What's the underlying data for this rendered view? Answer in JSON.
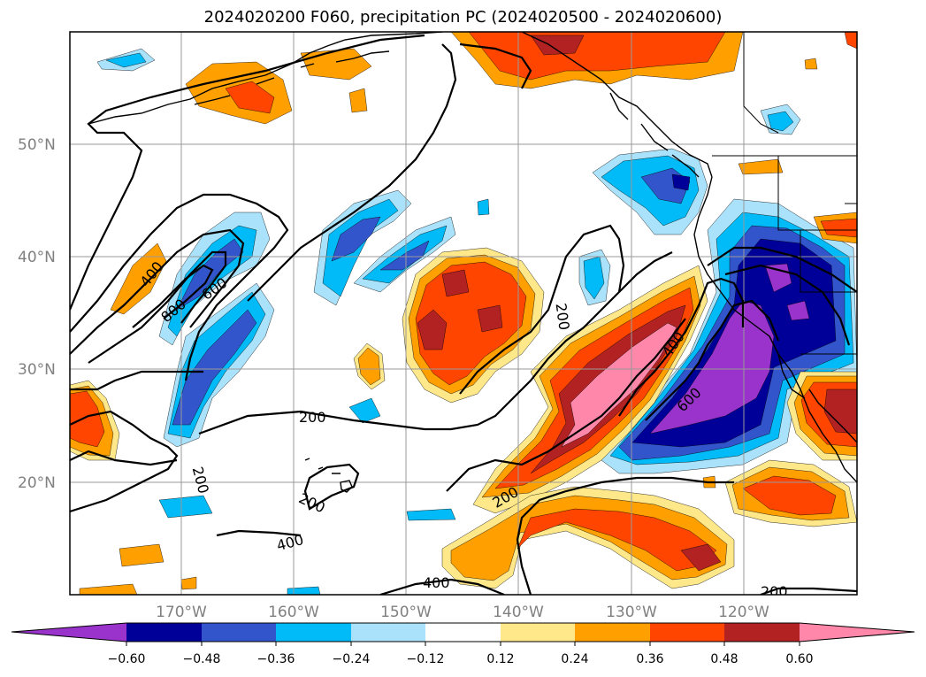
{
  "title": "2024020200 F060, precipitation PC (2024020500 - 2024020600)",
  "colors": {
    "neg4": "#9933cc",
    "neg3": "#000099",
    "neg2": "#3355cc",
    "neg1": "#00bbf7",
    "neg0": "#aae2fb",
    "zero": "#ffffff",
    "pos0": "#ffe88a",
    "pos1": "#ff9f00",
    "pos2": "#ff4500",
    "pos3": "#b22222",
    "pos4": "#ff88aa",
    "contour": "#000000",
    "grid": "#999999"
  },
  "lat_labels": [
    "50°N",
    "40°N",
    "30°N",
    "20°N"
  ],
  "lon_labels": [
    "170°W",
    "160°W",
    "150°W",
    "140°W",
    "130°W",
    "120°W"
  ],
  "colorbar": {
    "tick_labels": [
      "−0.60",
      "−0.48",
      "−0.36",
      "−0.24",
      "−0.12",
      "0.12",
      "0.24",
      "0.36",
      "0.48",
      "0.60"
    ]
  },
  "contour_labels": [
    "400",
    "800",
    "600",
    "200",
    "200",
    "400",
    "600",
    "200",
    "200",
    "200",
    "400",
    "400",
    "200"
  ]
}
